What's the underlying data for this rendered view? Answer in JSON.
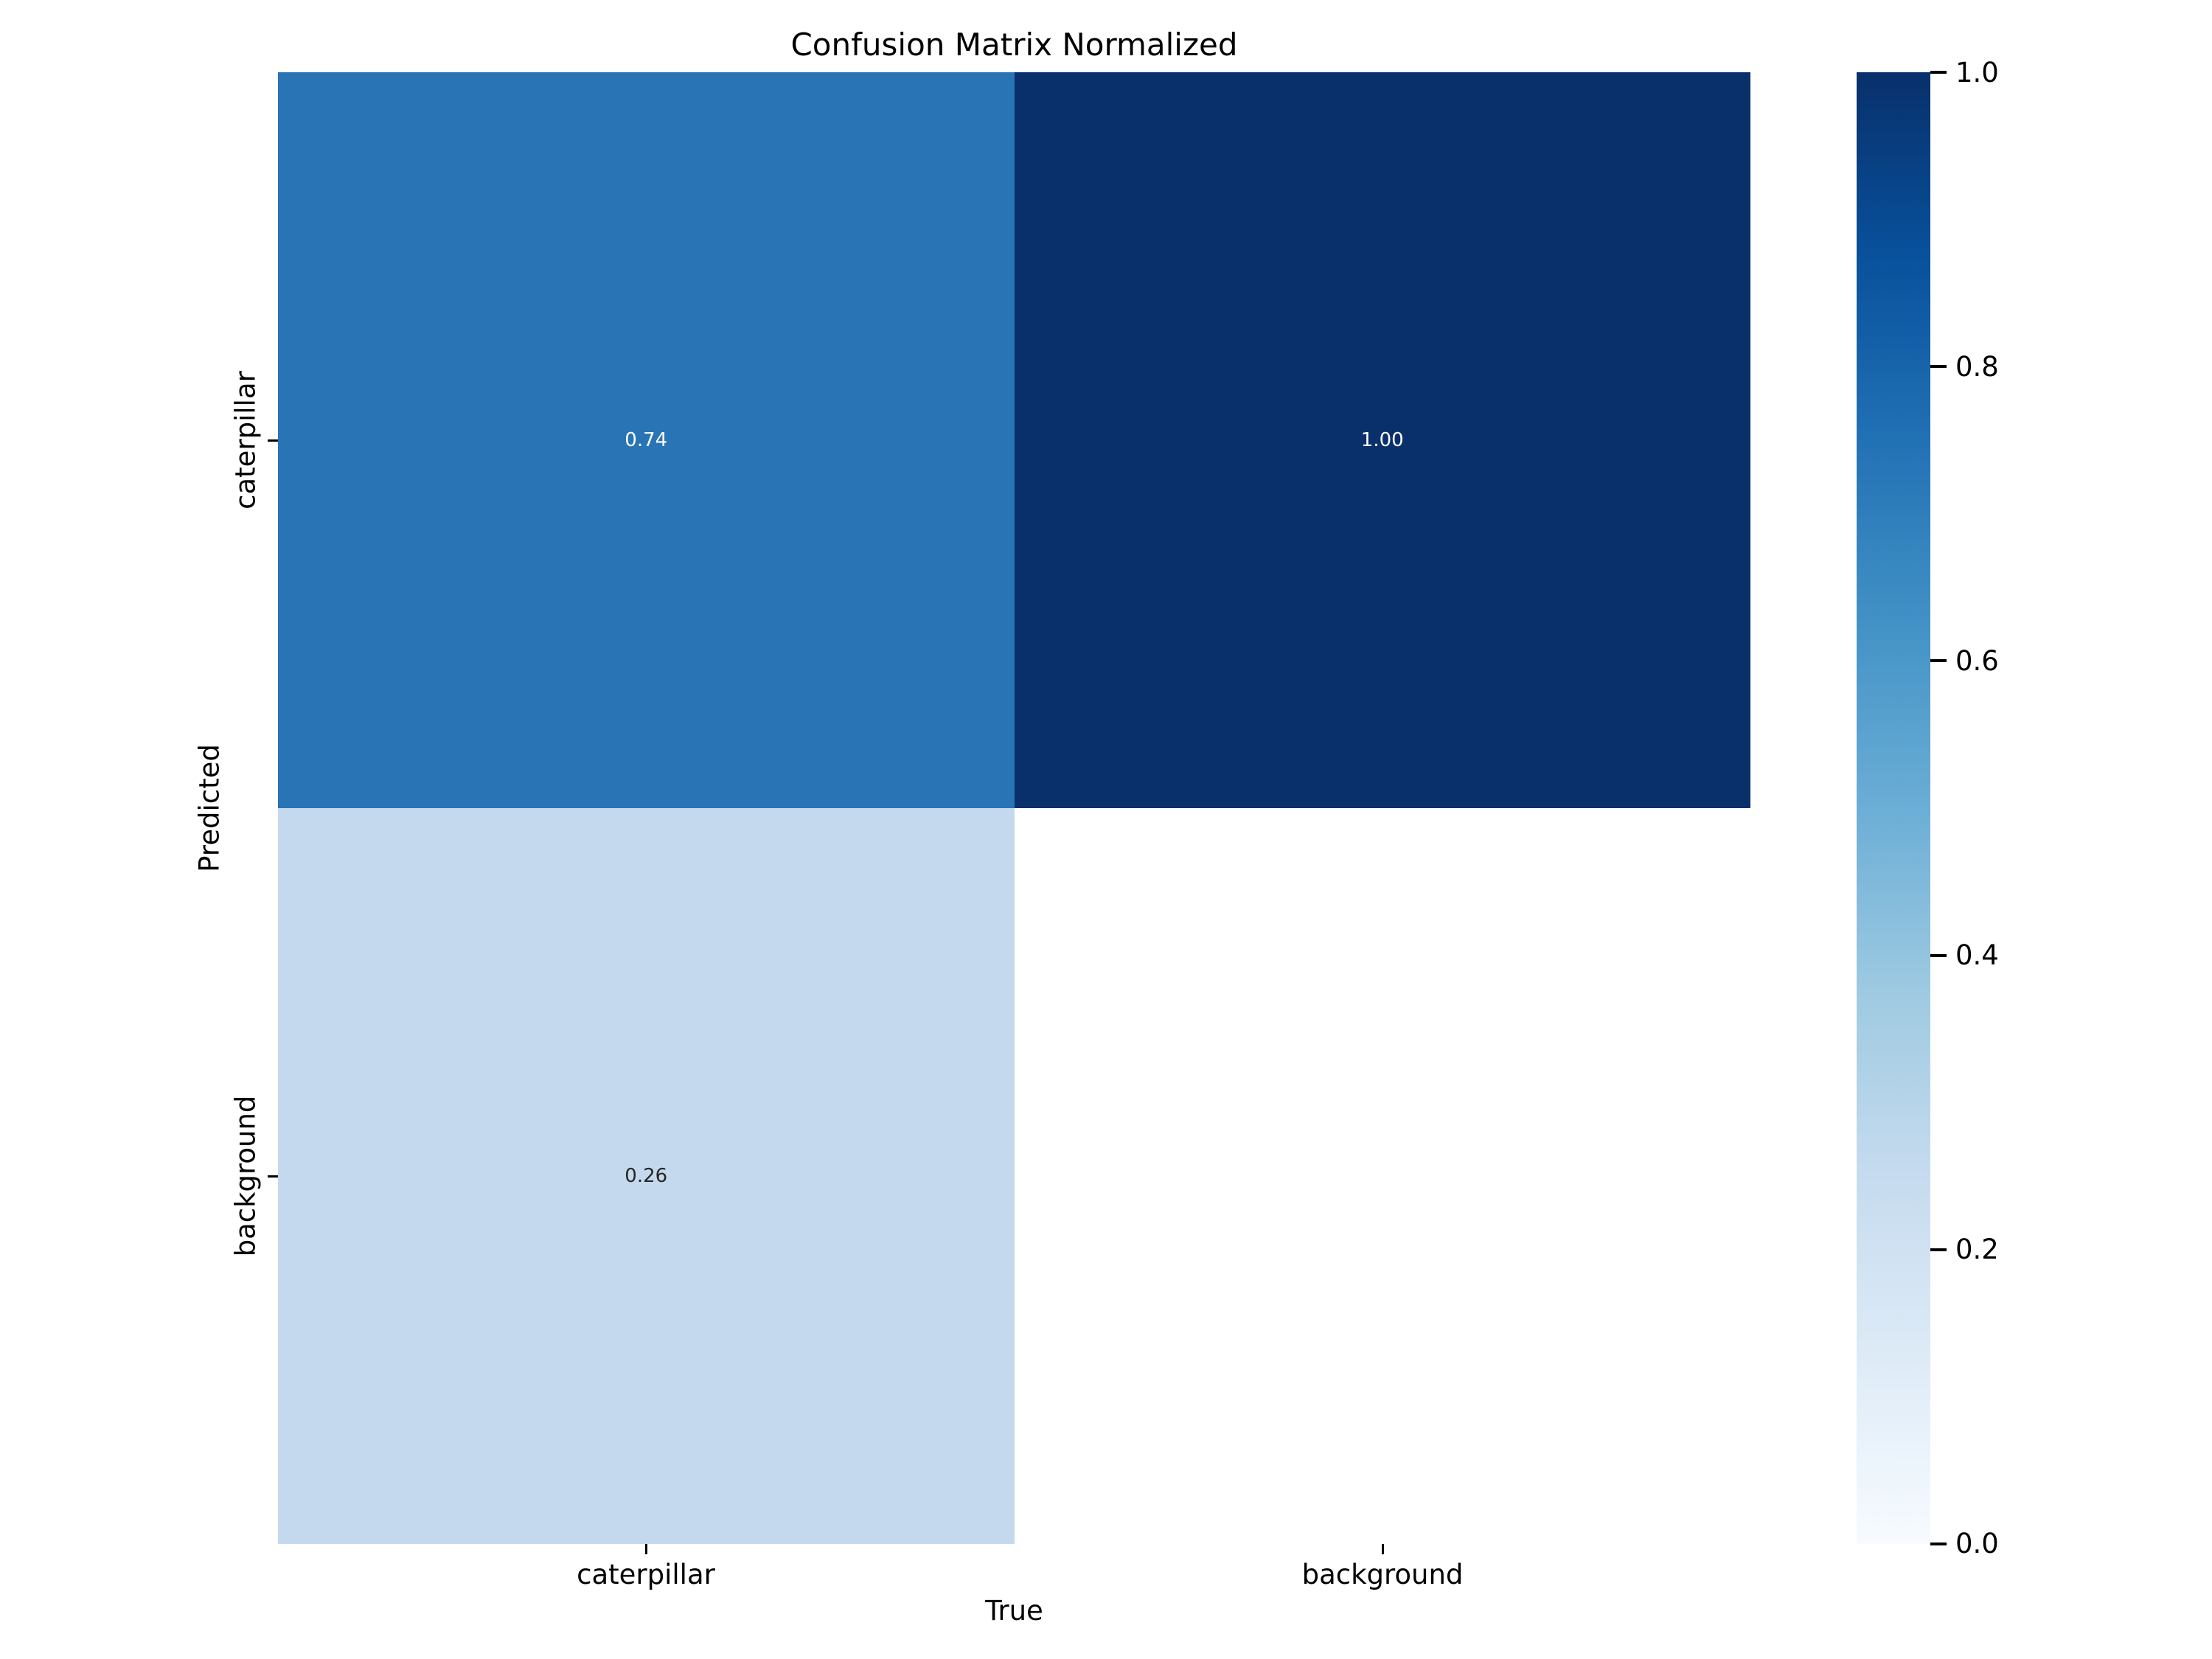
{
  "chart_data": {
    "type": "heatmap",
    "title": "Confusion Matrix Normalized",
    "xlabel": "True",
    "ylabel": "Predicted",
    "x_categories": [
      "caterpillar",
      "background"
    ],
    "y_categories": [
      "caterpillar",
      "background"
    ],
    "matrix": [
      [
        0.74,
        1.0
      ],
      [
        0.26,
        null
      ]
    ],
    "cells": [
      {
        "row": 0,
        "col": 0,
        "value": 0.74,
        "label": "0.74",
        "color": "#2874b4",
        "text_color": "#ffffff"
      },
      {
        "row": 0,
        "col": 1,
        "value": 1.0,
        "label": "1.00",
        "color": "#0a306b",
        "text_color": "#ffffff"
      },
      {
        "row": 1,
        "col": 0,
        "value": 0.26,
        "label": "0.26",
        "color": "#c4d9ed",
        "text_color": "#262626"
      },
      {
        "row": 1,
        "col": 1,
        "value": null,
        "label": "",
        "color": "#ffffff",
        "text_color": "#262626"
      }
    ],
    "value_range": [
      0.0,
      1.0
    ],
    "colormap": "Blues",
    "grid": false,
    "legend": "none",
    "colorbar": {
      "position": "right",
      "tick_labels": [
        "1.0",
        "0.8",
        "0.6",
        "0.4",
        "0.2",
        "0.0"
      ],
      "gradient_stops": [
        "#08306b",
        "#08519c",
        "#2171b5",
        "#4292c6",
        "#6baed6",
        "#9ecae1",
        "#c6dbef",
        "#deebf7",
        "#f7fbff"
      ]
    }
  }
}
